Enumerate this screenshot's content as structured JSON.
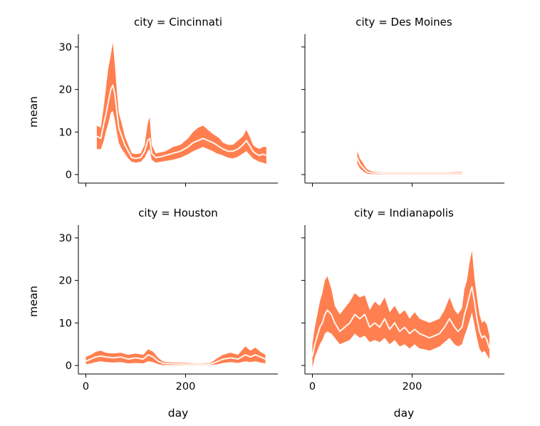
{
  "colors": {
    "band": "#ff7f50",
    "line": "#fff5ee",
    "axis": "#000000"
  },
  "chart_data": {
    "type": "area",
    "facet_by": "city",
    "layout": "2x2 grid, shared x and y axes",
    "xlabel": "day",
    "ylabel": "mean",
    "xlim": [
      -15,
      385
    ],
    "ylim": [
      -2,
      33
    ],
    "xticks": [
      0,
      200
    ],
    "yticks": [
      0,
      10,
      20,
      30
    ],
    "grid": false,
    "legend": "none",
    "panels": [
      {
        "title": "city = Cincinnati",
        "x": [
          22,
          30,
          36,
          40,
          45,
          50,
          54,
          58,
          62,
          66,
          72,
          78,
          85,
          92,
          100,
          110,
          118,
          124,
          128,
          132,
          140,
          150,
          160,
          175,
          190,
          205,
          215,
          225,
          235,
          245,
          255,
          262,
          268,
          275,
          285,
          295,
          305,
          315,
          322,
          330,
          335,
          340,
          348,
          355,
          362
        ],
        "mean": [
          9,
          8.5,
          12,
          14,
          17,
          20,
          21,
          19,
          15,
          11,
          9,
          7,
          5.5,
          4,
          3.8,
          4,
          5.5,
          8,
          8.5,
          5,
          4,
          4.2,
          4.5,
          5,
          5.5,
          6.5,
          7.5,
          8,
          8.5,
          8,
          7.5,
          7,
          6.5,
          6,
          5.5,
          5.5,
          6,
          7,
          8,
          6.5,
          5.5,
          5,
          4.5,
          4.8,
          4.5
        ],
        "lower": [
          6,
          6,
          8,
          10,
          12,
          14.5,
          15,
          13,
          10,
          7.5,
          6,
          5,
          3.8,
          3,
          2.8,
          3,
          4,
          5.5,
          6,
          3.5,
          2.8,
          3,
          3.2,
          3.5,
          4,
          4.8,
          5.5,
          6,
          6.5,
          6,
          5.5,
          5,
          4.8,
          4.5,
          4,
          3.8,
          4.2,
          5,
          5.5,
          4.5,
          3.8,
          3.5,
          3,
          2.8,
          2.5
        ],
        "upper": [
          11.5,
          11,
          16,
          20,
          25,
          28,
          31,
          26,
          20,
          14.5,
          12,
          9,
          7,
          5,
          4.8,
          5,
          7,
          12,
          13.5,
          7,
          5,
          5.2,
          5.5,
          6.5,
          7,
          8.5,
          10,
          11,
          11.5,
          10.5,
          9.5,
          9,
          8.5,
          7.5,
          7,
          7,
          8,
          9,
          10.5,
          8.5,
          7,
          6.5,
          6,
          6.5,
          6.5
        ]
      },
      {
        "title": "city = Des Moines",
        "x": [
          90,
          95,
          100,
          105,
          110,
          120,
          140,
          170,
          200,
          230,
          260,
          300
        ],
        "mean": [
          4,
          2.5,
          1.8,
          1.2,
          0.6,
          0.4,
          0.3,
          0.3,
          0.3,
          0.3,
          0.3,
          0.3
        ],
        "lower": [
          2.5,
          1.5,
          1,
          0.5,
          0.2,
          0.1,
          0.1,
          0.1,
          0.1,
          0.1,
          0.1,
          0.1
        ],
        "upper": [
          5.5,
          3.8,
          3,
          2,
          1.2,
          0.7,
          0.5,
          0.5,
          0.5,
          0.5,
          0.5,
          0.6
        ]
      },
      {
        "title": "city = Houston",
        "x": [
          0,
          10,
          20,
          30,
          40,
          55,
          70,
          85,
          100,
          115,
          125,
          135,
          145,
          155,
          175,
          200,
          225,
          250,
          265,
          275,
          290,
          305,
          320,
          330,
          340,
          350,
          360
        ],
        "mean": [
          1,
          1.5,
          2,
          2.2,
          2,
          1.8,
          2,
          1.5,
          1.8,
          1.5,
          2.5,
          2,
          1,
          0.5,
          0.4,
          0.3,
          0.3,
          0.3,
          1,
          1.5,
          1.8,
          1.5,
          2.5,
          2,
          2.5,
          2,
          1.5
        ],
        "lower": [
          0.3,
          0.5,
          0.8,
          1,
          0.8,
          0.7,
          0.8,
          0.5,
          0.6,
          0.5,
          1,
          0.8,
          0.3,
          0.1,
          0.1,
          0.1,
          0.1,
          0.1,
          0.3,
          0.6,
          0.8,
          0.6,
          1,
          0.8,
          1,
          0.7,
          0.5
        ],
        "upper": [
          2,
          2.5,
          3.2,
          3.5,
          3,
          2.8,
          3,
          2.5,
          2.8,
          2.5,
          3.8,
          3.2,
          1.8,
          0.9,
          0.7,
          0.6,
          0.5,
          0.6,
          1.8,
          2.5,
          3,
          2.5,
          4.5,
          3.5,
          4.2,
          3.2,
          2.5
        ],
        "mean_line": "partial"
      },
      {
        "title": "city = Indianapolis",
        "x": [
          0,
          5,
          10,
          15,
          20,
          25,
          30,
          38,
          45,
          55,
          65,
          75,
          85,
          95,
          105,
          115,
          125,
          135,
          145,
          155,
          165,
          175,
          185,
          195,
          205,
          215,
          225,
          235,
          245,
          255,
          265,
          275,
          285,
          292,
          300,
          305,
          310,
          315,
          320,
          325,
          330,
          335,
          340,
          345,
          350,
          355
        ],
        "mean": [
          2,
          5,
          7,
          9,
          10,
          12,
          13,
          12,
          10,
          8,
          9,
          10,
          12,
          11,
          12,
          9,
          10,
          9,
          11,
          8.5,
          10,
          8,
          9,
          7.5,
          8.5,
          7.5,
          7,
          6.5,
          7,
          7.5,
          9,
          11,
          9,
          8,
          9,
          12,
          14,
          16.5,
          18.5,
          15,
          11,
          8,
          6.5,
          7,
          6,
          4
        ],
        "lower": [
          -0.5,
          2,
          3.5,
          5,
          6,
          7.5,
          8,
          7.5,
          6.5,
          5,
          5.5,
          6,
          7.5,
          6.5,
          7,
          5.5,
          6,
          5.5,
          6.5,
          5,
          6,
          4.5,
          5,
          4,
          5,
          4,
          3.8,
          3.5,
          4,
          4.5,
          5.5,
          6.5,
          5,
          4.5,
          5,
          7,
          8.5,
          10.5,
          12.5,
          9.5,
          6.5,
          4,
          3,
          3.5,
          2.5,
          1.5
        ],
        "upper": [
          5,
          9,
          12,
          15,
          17,
          20,
          21,
          18,
          14,
          12,
          13.5,
          15,
          17,
          16,
          16.5,
          13,
          15,
          14,
          16,
          12.5,
          14,
          12,
          13,
          11,
          12.5,
          11,
          10.5,
          10,
          10.5,
          11,
          13,
          16,
          13,
          12,
          13.5,
          18,
          20,
          24,
          27,
          20.5,
          16,
          12,
          10,
          10.5,
          9.5,
          7
        ]
      }
    ]
  }
}
